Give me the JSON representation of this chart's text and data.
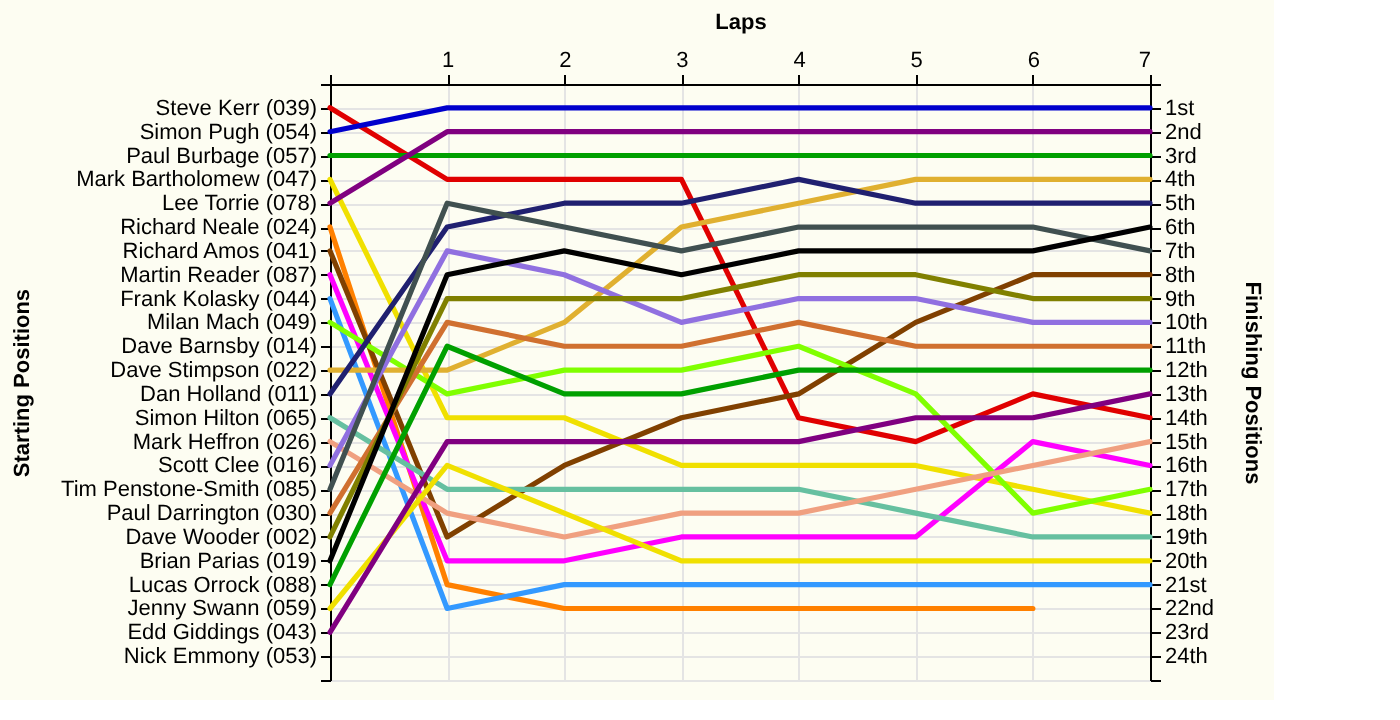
{
  "chart_data": {
    "type": "line",
    "xlabel": "Laps",
    "ylabel": "Finishing Positions",
    "x": [
      0,
      1,
      2,
      3,
      4,
      5,
      6,
      7
    ],
    "xlim": [
      0,
      7
    ],
    "xticks": [
      {
        "value": 0,
        "label": null
      },
      1,
      2,
      3,
      4,
      5,
      6,
      7
    ],
    "ylim": [
      25,
      0
    ],
    "yticks": [
      {
        "value": 0,
        "label": null
      },
      {
        "value": 1,
        "label": "1st"
      },
      {
        "value": 2,
        "label": "2nd"
      },
      {
        "value": 3,
        "label": "3rd"
      },
      {
        "value": 4,
        "label": "4th"
      },
      {
        "value": 5,
        "label": "5th"
      },
      {
        "value": 6,
        "label": "6th"
      },
      {
        "value": 7,
        "label": "7th"
      },
      {
        "value": 8,
        "label": "8th"
      },
      {
        "value": 9,
        "label": "9th"
      },
      {
        "value": 10,
        "label": "10th"
      },
      {
        "value": 11,
        "label": "11th"
      },
      {
        "value": 12,
        "label": "12th"
      },
      {
        "value": 13,
        "label": "13th"
      },
      {
        "value": 14,
        "label": "14th"
      },
      {
        "value": 15,
        "label": "15th"
      },
      {
        "value": 16,
        "label": "16th"
      },
      {
        "value": 17,
        "label": "17th"
      },
      {
        "value": 18,
        "label": "18th"
      },
      {
        "value": 19,
        "label": "19th"
      },
      {
        "value": 20,
        "label": "20th"
      },
      {
        "value": 21,
        "label": "21st"
      },
      {
        "value": 22,
        "label": "22nd"
      },
      {
        "value": 23,
        "label": "23rd"
      },
      {
        "value": 24,
        "label": "24th"
      },
      {
        "value": 25,
        "label": null
      }
    ],
    "annotations": [
      "Starting Positions",
      "Steve Kerr (039)",
      "Simon Pugh (054)",
      "Paul Burbage (057)",
      "Mark Bartholomew (047)",
      "Lee Torrie (078)",
      "Richard Neale (024)",
      "Richard Amos (041)",
      "Martin Reader (087)",
      "Frank Kolasky (044)",
      "Milan Mach (049)",
      "Dave Barnsby (014)",
      "Dave Stimpson (022)",
      "Dan Holland (011)",
      "Simon Hilton (065)",
      "Mark Heffron (026)",
      "Scott Clee (016)",
      "Tim Penstone-Smith (085)",
      "Paul Darrington (030)",
      "Dave Wooder (002)",
      "Brian Parias (019)",
      "Lucas Orrock (088)",
      "Jenny Swann (059)",
      "Edd Giddings (043)",
      "Nick Emmony (053)"
    ],
    "grid": true,
    "legend": false,
    "marker": "none",
    "series": [
      {
        "color": "#e00000",
        "values": [
          1,
          4,
          4,
          4,
          14,
          15,
          13,
          14
        ]
      },
      {
        "color": "#0000cc",
        "values": [
          2,
          1,
          1,
          1,
          1,
          1,
          1,
          1
        ]
      },
      {
        "color": "#00a000",
        "values": [
          3,
          3,
          3,
          3,
          3,
          3,
          3,
          3
        ]
      },
      {
        "color": "#f0e000",
        "values": [
          4,
          14,
          14,
          16,
          16,
          16,
          17,
          18
        ]
      },
      {
        "color": "#800080",
        "values": [
          5,
          2,
          2,
          2,
          2,
          2,
          2,
          2
        ]
      },
      {
        "color": "#ff8000",
        "values": [
          6,
          21,
          22,
          22,
          22,
          22,
          22,
          null
        ]
      },
      {
        "color": "#804000",
        "values": [
          7,
          19,
          16,
          14,
          13,
          10,
          8,
          8
        ]
      },
      {
        "color": "#ff00ff",
        "values": [
          8,
          20,
          20,
          19,
          19,
          19,
          15,
          16
        ]
      },
      {
        "color": "#3399ff",
        "values": [
          9,
          22,
          21,
          21,
          21,
          21,
          21,
          21
        ]
      },
      {
        "color": "#80ff00",
        "values": [
          10,
          13,
          12,
          12,
          11,
          13,
          18,
          17
        ]
      },
      {
        "color": "#e0b030",
        "values": [
          12,
          12,
          10,
          6,
          5,
          4,
          4,
          4
        ]
      },
      {
        "color": "#202070",
        "values": [
          13,
          6,
          5,
          5,
          4,
          5,
          5,
          5
        ]
      },
      {
        "color": "#66c0a0",
        "values": [
          14,
          17,
          17,
          17,
          17,
          18,
          19,
          19
        ]
      },
      {
        "color": "#f0a080",
        "values": [
          15,
          18,
          19,
          18,
          18,
          17,
          16,
          15
        ]
      },
      {
        "color": "#9070e0",
        "values": [
          16,
          7,
          8,
          10,
          9,
          9,
          10,
          10
        ]
      },
      {
        "color": "#405050",
        "values": [
          17,
          5,
          6,
          7,
          6,
          6,
          6,
          7
        ]
      },
      {
        "color": "#d07030",
        "values": [
          18,
          10,
          11,
          11,
          10,
          11,
          11,
          11
        ]
      },
      {
        "color": "#808000",
        "values": [
          19,
          9,
          9,
          9,
          8,
          8,
          9,
          9
        ]
      },
      {
        "color": "#000000",
        "values": [
          20,
          8,
          7,
          8,
          7,
          7,
          7,
          6
        ]
      },
      {
        "color": "#00a000",
        "values": [
          21,
          11,
          13,
          13,
          12,
          12,
          12,
          12
        ]
      },
      {
        "color": "#f0e000",
        "values": [
          22,
          16,
          18,
          20,
          20,
          20,
          20,
          20
        ]
      },
      {
        "color": "#800080",
        "values": [
          23,
          15,
          15,
          15,
          15,
          14,
          14,
          13
        ]
      }
    ]
  }
}
